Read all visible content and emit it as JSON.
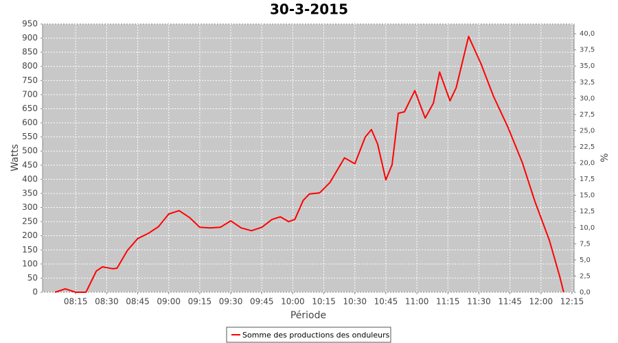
{
  "chart_data": {
    "type": "line",
    "title": "30-3-2015",
    "x_label": "Période",
    "y_label": "Watts",
    "y2_label": "%",
    "x": [
      "08:05",
      "08:10",
      "08:15",
      "08:20",
      "08:25",
      "08:28",
      "08:33",
      "08:35",
      "08:40",
      "08:45",
      "08:50",
      "08:55",
      "09:00",
      "09:05",
      "09:10",
      "09:15",
      "09:20",
      "09:25",
      "09:30",
      "09:35",
      "09:40",
      "09:45",
      "09:50",
      "09:54",
      "09:58",
      "10:01",
      "10:05",
      "10:08",
      "10:13",
      "10:18",
      "10:25",
      "10:30",
      "10:35",
      "10:38",
      "10:41",
      "10:45",
      "10:48",
      "10:51",
      "10:54",
      "10:59",
      "11:04",
      "11:08",
      "11:11",
      "11:16",
      "11:19",
      "11:25",
      "11:31",
      "11:37",
      "11:44",
      "11:51",
      "11:57",
      "12:04",
      "12:09",
      "12:11"
    ],
    "series": [
      {
        "name": "Somme des productions des onduleurs",
        "color": "#ff0000",
        "values": [
          0,
          12,
          0,
          0,
          75,
          90,
          83,
          85,
          148,
          190,
          208,
          232,
          277,
          289,
          265,
          230,
          228,
          230,
          253,
          228,
          218,
          230,
          258,
          267,
          250,
          258,
          325,
          348,
          352,
          389,
          476,
          455,
          549,
          576,
          525,
          398,
          452,
          634,
          639,
          714,
          617,
          670,
          780,
          678,
          724,
          906,
          809,
          695,
          585,
          459,
          323,
          185,
          58,
          0
        ]
      }
    ],
    "xlim": [
      "07:59",
      "12:16"
    ],
    "xticks": [
      "08:15",
      "08:30",
      "08:45",
      "09:00",
      "09:15",
      "09:30",
      "09:45",
      "10:00",
      "10:15",
      "10:30",
      "10:45",
      "11:00",
      "11:15",
      "11:30",
      "11:45",
      "12:00",
      "12:15"
    ],
    "ylim": [
      0,
      950
    ],
    "yticks": [
      0,
      50,
      100,
      150,
      200,
      250,
      300,
      350,
      400,
      450,
      500,
      550,
      600,
      650,
      700,
      750,
      800,
      850,
      900,
      950
    ],
    "y2lim": [
      0,
      41.5
    ],
    "y2ticks": [
      {
        "value": 0,
        "label": "0,0"
      },
      {
        "value": 2.5,
        "label": "2,5"
      },
      {
        "value": 5,
        "label": "5,0"
      },
      {
        "value": 7.5,
        "label": "7,5"
      },
      {
        "value": 10,
        "label": "10,0"
      },
      {
        "value": 12.5,
        "label": "12,5"
      },
      {
        "value": 15,
        "label": "15,0"
      },
      {
        "value": 17.5,
        "label": "17,5"
      },
      {
        "value": 20,
        "label": "20,0"
      },
      {
        "value": 22.5,
        "label": "22,5"
      },
      {
        "value": 25,
        "label": "25,0"
      },
      {
        "value": 27.5,
        "label": "27,5"
      },
      {
        "value": 30,
        "label": "30,0"
      },
      {
        "value": 32.5,
        "label": "32,5"
      },
      {
        "value": 35,
        "label": "35,0"
      },
      {
        "value": 37.5,
        "label": "37,5"
      },
      {
        "value": 40,
        "label": "40,0"
      }
    ],
    "grid": true
  }
}
